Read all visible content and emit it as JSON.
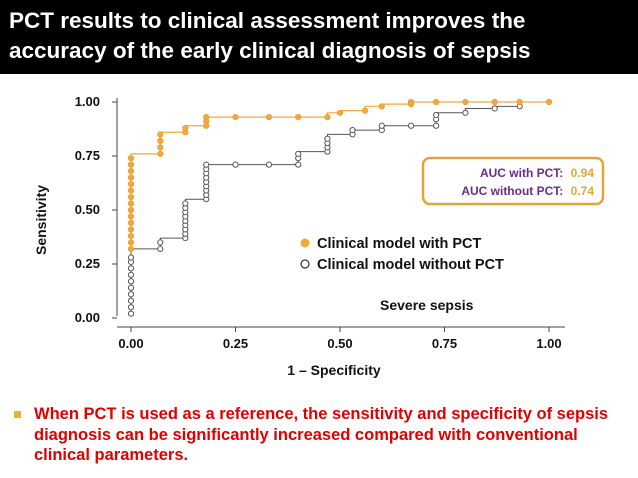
{
  "slide": {
    "title_line1": "PCT results to clinical assessment improves the",
    "title_line2": "accuracy of the early clinical diagnosis of sepsis",
    "bullet_text": "When PCT is used as a reference, the sensitivity and specificity of sepsis diagnosis can be significantly increased compared with conventional clinical parameters."
  },
  "colors": {
    "title_bg": "#000000",
    "title_text": "#ffffff",
    "series_with_pct": "#f2a93b",
    "series_without_pct": "#555555",
    "auc_box_border": "#e3a33a",
    "auc_label": "#6d2a8e",
    "auc_value": "#e8a531",
    "bullet_text": "#e00000",
    "bullet_marker": "#e8b23c"
  },
  "chart_data": {
    "type": "line",
    "xlabel": "1 – Specificity",
    "ylabel": "Sensitivity",
    "xlim": [
      0,
      1
    ],
    "ylim": [
      0,
      1
    ],
    "xticks": [
      "0.00",
      "0.25",
      "0.50",
      "0.75",
      "1.00"
    ],
    "yticks": [
      "0.00",
      "0.25",
      "0.50",
      "0.75",
      "1.00"
    ],
    "grid": false,
    "legend_position": "center-right",
    "annotation": "Severe sepsis",
    "auc_box": {
      "with_label": "AUC with PCT:",
      "with_value": "0.94",
      "without_label": "AUC without PCT:",
      "without_value": "0.74"
    },
    "series": [
      {
        "name": "Clinical model with PCT",
        "marker": "filled-circle",
        "points": [
          [
            0,
            0.32
          ],
          [
            0,
            0.35
          ],
          [
            0,
            0.38
          ],
          [
            0,
            0.41
          ],
          [
            0,
            0.44
          ],
          [
            0,
            0.47
          ],
          [
            0,
            0.5
          ],
          [
            0,
            0.53
          ],
          [
            0,
            0.56
          ],
          [
            0,
            0.59
          ],
          [
            0,
            0.62
          ],
          [
            0,
            0.65
          ],
          [
            0,
            0.68
          ],
          [
            0,
            0.71
          ],
          [
            0,
            0.74
          ],
          [
            0.07,
            0.76
          ],
          [
            0.07,
            0.79
          ],
          [
            0.07,
            0.82
          ],
          [
            0.07,
            0.85
          ],
          [
            0.13,
            0.86
          ],
          [
            0.13,
            0.88
          ],
          [
            0.18,
            0.89
          ],
          [
            0.18,
            0.91
          ],
          [
            0.18,
            0.93
          ],
          [
            0.25,
            0.93
          ],
          [
            0.33,
            0.93
          ],
          [
            0.4,
            0.93
          ],
          [
            0.47,
            0.93
          ],
          [
            0.5,
            0.95
          ],
          [
            0.56,
            0.96
          ],
          [
            0.6,
            0.98
          ],
          [
            0.67,
            0.99
          ],
          [
            0.67,
            1.0
          ],
          [
            0.73,
            1.0
          ],
          [
            0.8,
            1.0
          ],
          [
            0.87,
            1.0
          ],
          [
            0.93,
            1.0
          ],
          [
            1.0,
            1.0
          ]
        ]
      },
      {
        "name": "Clinical model without PCT",
        "marker": "open-circle",
        "points": [
          [
            0,
            0.02
          ],
          [
            0,
            0.05
          ],
          [
            0,
            0.08
          ],
          [
            0,
            0.11
          ],
          [
            0,
            0.14
          ],
          [
            0,
            0.17
          ],
          [
            0,
            0.2
          ],
          [
            0,
            0.23
          ],
          [
            0,
            0.26
          ],
          [
            0,
            0.28
          ],
          [
            0.07,
            0.32
          ],
          [
            0.07,
            0.35
          ],
          [
            0.13,
            0.37
          ],
          [
            0.13,
            0.39
          ],
          [
            0.13,
            0.41
          ],
          [
            0.13,
            0.43
          ],
          [
            0.13,
            0.45
          ],
          [
            0.13,
            0.47
          ],
          [
            0.13,
            0.49
          ],
          [
            0.13,
            0.51
          ],
          [
            0.13,
            0.53
          ],
          [
            0.18,
            0.55
          ],
          [
            0.18,
            0.57
          ],
          [
            0.18,
            0.59
          ],
          [
            0.18,
            0.61
          ],
          [
            0.18,
            0.63
          ],
          [
            0.18,
            0.65
          ],
          [
            0.18,
            0.67
          ],
          [
            0.18,
            0.69
          ],
          [
            0.18,
            0.71
          ],
          [
            0.25,
            0.71
          ],
          [
            0.33,
            0.71
          ],
          [
            0.4,
            0.71
          ],
          [
            0.4,
            0.74
          ],
          [
            0.4,
            0.76
          ],
          [
            0.47,
            0.77
          ],
          [
            0.47,
            0.79
          ],
          [
            0.47,
            0.81
          ],
          [
            0.47,
            0.83
          ],
          [
            0.53,
            0.85
          ],
          [
            0.53,
            0.87
          ],
          [
            0.6,
            0.87
          ],
          [
            0.6,
            0.89
          ],
          [
            0.67,
            0.89
          ],
          [
            0.73,
            0.89
          ],
          [
            0.73,
            0.92
          ],
          [
            0.73,
            0.94
          ],
          [
            0.8,
            0.95
          ],
          [
            0.87,
            0.97
          ],
          [
            0.93,
            0.98
          ]
        ]
      }
    ]
  }
}
